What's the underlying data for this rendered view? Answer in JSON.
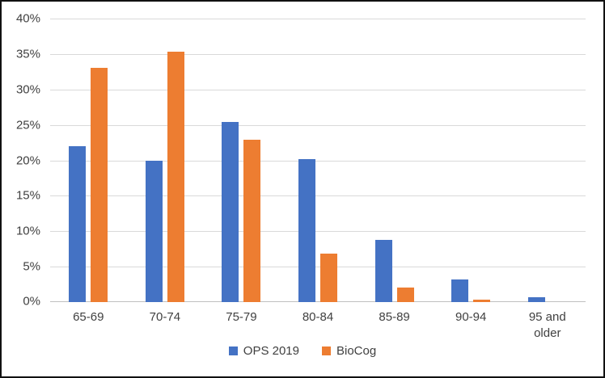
{
  "chart_data": {
    "type": "bar",
    "title": "",
    "xlabel": "",
    "ylabel": "",
    "categories": [
      "65-69",
      "70-74",
      "75-79",
      "80-84",
      "85-89",
      "90-94",
      "95 and older"
    ],
    "series": [
      {
        "name": "OPS 2019",
        "color": "#4472C4",
        "values": [
          22.0,
          20.0,
          25.4,
          20.2,
          8.8,
          3.2,
          0.7
        ]
      },
      {
        "name": "BioCog",
        "color": "#ED7D31",
        "values": [
          33.1,
          35.3,
          22.9,
          6.8,
          2.0,
          0.3,
          0.0
        ]
      }
    ],
    "ylim": [
      0,
      40
    ],
    "ytick_step": 5,
    "ytick_labels": [
      "0%",
      "5%",
      "10%",
      "15%",
      "20%",
      "25%",
      "30%",
      "35%",
      "40%"
    ],
    "grid": true,
    "legend_position": "bottom",
    "colors": {
      "gridline": "#d9d9d9",
      "axis_line": "#bfbfbf",
      "text": "#404040",
      "border": "#111111",
      "background": "#ffffff"
    }
  }
}
